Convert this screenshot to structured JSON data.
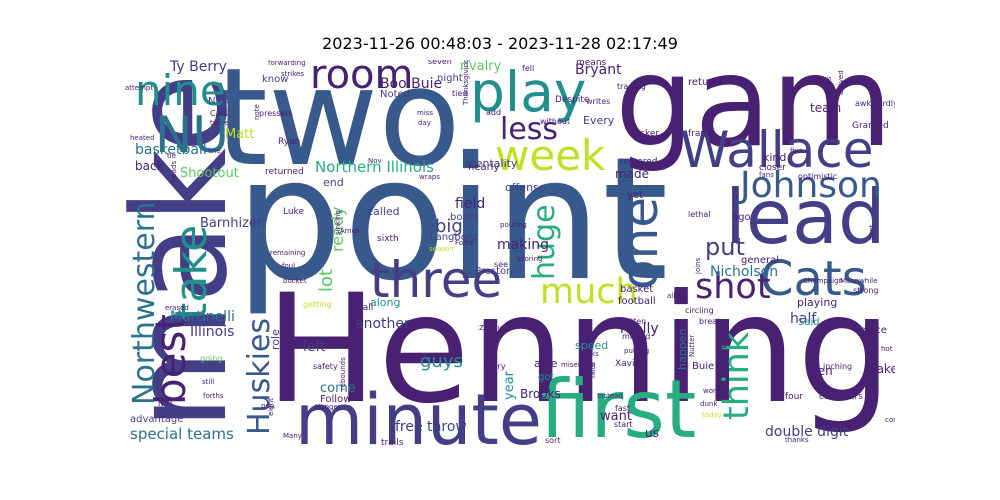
{
  "title": "2023-11-26 00:48:03 - 2023-11-28 02:17:49",
  "palette": {
    "dark_purple": "#482173",
    "indigo": "#433e85",
    "blue": "#38598c",
    "steel": "#2c728e",
    "teal": "#21908d",
    "green": "#27ad81",
    "lime": "#5cc863",
    "yellow": "#c2df23"
  },
  "words": [
    {
      "text": "point",
      "color": "#38598c"
    },
    {
      "text": "Henning",
      "color": "#482173"
    },
    {
      "text": "two",
      "color": "#38598c"
    },
    {
      "text": "game",
      "color": "#482173"
    },
    {
      "text": "make",
      "color": "#433e85"
    },
    {
      "text": "first",
      "color": "#27ad81"
    },
    {
      "text": "minute",
      "color": "#433e85"
    },
    {
      "text": "lead",
      "color": "#433e85"
    },
    {
      "text": "Wallace",
      "color": "#433e85"
    },
    {
      "text": "play",
      "color": "#21908d"
    },
    {
      "text": "week",
      "color": "#c2df23"
    },
    {
      "text": "one",
      "color": "#38598c"
    },
    {
      "text": "Cats",
      "color": "#38598c"
    },
    {
      "text": "Johnson",
      "color": "#38598c"
    },
    {
      "text": "three",
      "color": "#433e85"
    },
    {
      "text": "NU",
      "color": "#2c728e"
    },
    {
      "text": "nine",
      "color": "#21908d"
    },
    {
      "text": "room",
      "color": "#482173"
    },
    {
      "text": "best",
      "color": "#482173"
    },
    {
      "text": "take",
      "color": "#21908d"
    },
    {
      "text": "Northwestern",
      "color": "#2c728e"
    },
    {
      "text": "much",
      "color": "#c2df23"
    },
    {
      "text": "huge",
      "color": "#27ad81"
    },
    {
      "text": "think",
      "color": "#27ad81"
    },
    {
      "text": "shot",
      "color": "#482173"
    },
    {
      "text": "Huskies",
      "color": "#38598c"
    },
    {
      "text": "less",
      "color": "#482173"
    },
    {
      "text": "special teams",
      "color": "#2c728e"
    },
    {
      "text": "put",
      "color": "#433e85"
    },
    {
      "text": "Ty Berry",
      "color": "#433e85"
    },
    {
      "text": "Bryant",
      "color": "#482173"
    },
    {
      "text": "Boo Buie",
      "color": "#482173"
    },
    {
      "text": "rivalry",
      "color": "#5cc863"
    },
    {
      "text": "basketball",
      "color": "#2c728e"
    },
    {
      "text": "Northern Illinois",
      "color": "#27ad81"
    },
    {
      "text": "Martinelli",
      "color": "#2c728e"
    },
    {
      "text": "Illinois",
      "color": "#433e85"
    },
    {
      "text": "Nicholson",
      "color": "#2c728e"
    },
    {
      "text": "double digit",
      "color": "#433e85"
    },
    {
      "text": "free throw",
      "color": "#433e85"
    },
    {
      "text": "guys",
      "color": "#21908d"
    },
    {
      "text": "big",
      "color": "#433e85"
    },
    {
      "text": "lot",
      "color": "#5cc863"
    },
    {
      "text": "ready",
      "color": "#5cc863"
    },
    {
      "text": "Matt",
      "color": "#c2df23"
    },
    {
      "text": "Barnhizer",
      "color": "#433e85"
    },
    {
      "text": "Shootout",
      "color": "#5cc863"
    },
    {
      "text": "field",
      "color": "#482173"
    },
    {
      "text": "making",
      "color": "#482173"
    },
    {
      "text": "another",
      "color": "#433e85"
    },
    {
      "text": "half",
      "color": "#433e85"
    },
    {
      "text": "really",
      "color": "#482173"
    },
    {
      "text": "left",
      "color": "#433e85"
    },
    {
      "text": "year",
      "color": "#21908d"
    },
    {
      "text": "come",
      "color": "#2c728e"
    },
    {
      "text": "want",
      "color": "#482173"
    },
    {
      "text": "Brooks",
      "color": "#482173"
    },
    {
      "text": "made",
      "color": "#482173"
    },
    {
      "text": "team",
      "color": "#482173"
    },
    {
      "text": "back",
      "color": "#482173"
    },
    {
      "text": "role",
      "color": "#433e85"
    },
    {
      "text": "end",
      "color": "#433e85"
    },
    {
      "text": "last",
      "color": "#482173"
    },
    {
      "text": "us",
      "color": "#482173"
    },
    {
      "text": "Blake",
      "color": "#482173"
    },
    {
      "text": "men",
      "color": "#482173"
    },
    {
      "text": "playing",
      "color": "#482173"
    },
    {
      "text": "kind",
      "color": "#482173"
    },
    {
      "text": "Every",
      "color": "#433e85"
    },
    {
      "text": "mentality",
      "color": "#433e85"
    },
    {
      "text": "offense",
      "color": "#433e85"
    },
    {
      "text": "board",
      "color": "#433e85"
    },
    {
      "text": "Langborg",
      "color": "#433e85"
    },
    {
      "text": "Preston",
      "color": "#433e85"
    },
    {
      "text": "called",
      "color": "#433e85"
    },
    {
      "text": "advantage",
      "color": "#433e85"
    },
    {
      "text": "Nick",
      "color": "#433e85"
    },
    {
      "text": "know",
      "color": "#433e85"
    },
    {
      "text": "night",
      "color": "#433e85"
    },
    {
      "text": "Noted",
      "color": "#433e85"
    },
    {
      "text": "happen",
      "color": "#2c728e"
    },
    {
      "text": "speed",
      "color": "#21908d"
    },
    {
      "text": "got",
      "color": "#21908d"
    },
    {
      "text": "able",
      "color": "#482173"
    },
    {
      "text": "basket",
      "color": "#482173"
    },
    {
      "text": "football",
      "color": "#482173"
    },
    {
      "text": "general",
      "color": "#482173"
    },
    {
      "text": "ago",
      "color": "#482173"
    },
    {
      "text": "along",
      "color": "#21908d"
    },
    {
      "text": "Follow",
      "color": "#482173"
    },
    {
      "text": "Said",
      "color": "#21908d"
    },
    {
      "text": "place",
      "color": "#482173"
    },
    {
      "text": "four",
      "color": "#482173"
    },
    {
      "text": "return",
      "color": "#482173"
    },
    {
      "text": "frame",
      "color": "#482173"
    },
    {
      "text": "nearly",
      "color": "#482173"
    },
    {
      "text": "yet",
      "color": "#482173"
    },
    {
      "text": "Buie",
      "color": "#482173"
    },
    {
      "text": "Ryan",
      "color": "#482173"
    },
    {
      "text": "returned",
      "color": "#482173"
    },
    {
      "text": "Luke",
      "color": "#482173"
    },
    {
      "text": "sixth",
      "color": "#482173"
    },
    {
      "text": "ball",
      "color": "#482173"
    },
    {
      "text": "locker",
      "color": "#482173"
    },
    {
      "text": "restored",
      "color": "#482173"
    },
    {
      "text": "Xavior",
      "color": "#482173"
    },
    {
      "text": "trails",
      "color": "#482173"
    },
    {
      "text": "calendars",
      "color": "#482173"
    },
    {
      "text": "closer",
      "color": "#482173"
    },
    {
      "text": "Granted",
      "color": "#482173"
    },
    {
      "text": "awkwardly",
      "color": "#482173"
    },
    {
      "text": "break",
      "color": "#482173"
    },
    {
      "text": "circling",
      "color": "#482173"
    },
    {
      "text": "fast",
      "color": "#482173"
    },
    {
      "text": "inching",
      "color": "#482173"
    },
    {
      "text": "missed",
      "color": "#482173"
    },
    {
      "text": "gotten",
      "color": "#482173"
    },
    {
      "text": "lethal",
      "color": "#482173"
    },
    {
      "text": "strong",
      "color": "#482173"
    },
    {
      "text": "optimistic",
      "color": "#482173"
    },
    {
      "text": "Champaign",
      "color": "#482173"
    },
    {
      "text": "Meanwhile",
      "color": "#482173"
    },
    {
      "text": "fans",
      "color": "#482173"
    },
    {
      "text": "Despite",
      "color": "#482173"
    },
    {
      "text": "writes",
      "color": "#482173"
    },
    {
      "text": "trading",
      "color": "#482173"
    },
    {
      "text": "means",
      "color": "#482173"
    },
    {
      "text": "fell",
      "color": "#482173"
    },
    {
      "text": "seven",
      "color": "#482173"
    },
    {
      "text": "tied",
      "color": "#482173"
    },
    {
      "text": "add",
      "color": "#482173"
    },
    {
      "text": "without",
      "color": "#482173"
    },
    {
      "text": "forwarding",
      "color": "#482173"
    },
    {
      "text": "strikes",
      "color": "#482173"
    },
    {
      "text": "attempt",
      "color": "#482173"
    },
    {
      "text": "heated",
      "color": "#482173"
    },
    {
      "text": "twice",
      "color": "#482173"
    },
    {
      "text": "Cats'",
      "color": "#482173"
    },
    {
      "text": "pressers",
      "color": "#482173"
    },
    {
      "text": "miss",
      "color": "#482173"
    },
    {
      "text": "day",
      "color": "#482173"
    },
    {
      "text": "Thanksgiving",
      "color": "#482173"
    },
    {
      "text": "Nov",
      "color": "#482173"
    },
    {
      "text": "wraps",
      "color": "#482173"
    },
    {
      "text": "pouring",
      "color": "#482173"
    },
    {
      "text": "scoring",
      "color": "#482173"
    },
    {
      "text": "Folks",
      "color": "#482173"
    },
    {
      "text": "see",
      "color": "#482173"
    },
    {
      "text": "Zarique",
      "color": "#482173"
    },
    {
      "text": "tip",
      "color": "#482173"
    },
    {
      "text": "Berry",
      "color": "#482173"
    },
    {
      "text": "sinks",
      "color": "#482173"
    },
    {
      "text": "miserable",
      "color": "#482173"
    },
    {
      "text": "putting",
      "color": "#482173"
    },
    {
      "text": "worth",
      "color": "#482173"
    },
    {
      "text": "dunk",
      "color": "#482173"
    },
    {
      "text": "start",
      "color": "#482173"
    },
    {
      "text": "sort",
      "color": "#482173"
    },
    {
      "text": "faith",
      "color": "#482173"
    },
    {
      "text": "Instead",
      "color": "#482173"
    },
    {
      "text": "today",
      "color": "#c2df23"
    },
    {
      "text": "rebounds",
      "color": "#482173"
    },
    {
      "text": "safety",
      "color": "#482173"
    },
    {
      "text": "going",
      "color": "#5cc863"
    },
    {
      "text": "getting",
      "color": "#c2df23"
    },
    {
      "text": "still",
      "color": "#482173"
    },
    {
      "text": "forths",
      "color": "#482173"
    },
    {
      "text": "erased",
      "color": "#482173"
    },
    {
      "text": "Hunger",
      "color": "#482173"
    },
    {
      "text": "bucket",
      "color": "#482173"
    },
    {
      "text": "foul",
      "color": "#482173"
    },
    {
      "text": "remaining",
      "color": "#482173"
    },
    {
      "text": "sinking",
      "color": "#482173"
    },
    {
      "text": "season",
      "color": "#c2df23"
    },
    {
      "text": "Amos",
      "color": "#482173"
    },
    {
      "text": "pop",
      "color": "#482173"
    },
    {
      "text": "eight",
      "color": "#482173"
    },
    {
      "text": "Many",
      "color": "#482173"
    },
    {
      "text": "hot",
      "color": "#482173"
    },
    {
      "text": "thanks",
      "color": "#482173"
    },
    {
      "text": "considered",
      "color": "#482173"
    },
    {
      "text": "alley",
      "color": "#482173"
    },
    {
      "text": "Nutter",
      "color": "#482173"
    },
    {
      "text": "five",
      "color": "#482173"
    },
    {
      "text": "arrived",
      "color": "#482173"
    },
    {
      "text": "throws",
      "color": "#482173"
    },
    {
      "text": "post",
      "color": "#482173"
    },
    {
      "text": "joins",
      "color": "#482173"
    },
    {
      "text": "note",
      "color": "#482173"
    },
    {
      "text": "tie",
      "color": "#482173"
    },
    {
      "text": "line",
      "color": "#482173"
    },
    {
      "text": "heads",
      "color": "#482173"
    },
    {
      "text": "NIU",
      "color": "#482173"
    }
  ]
}
